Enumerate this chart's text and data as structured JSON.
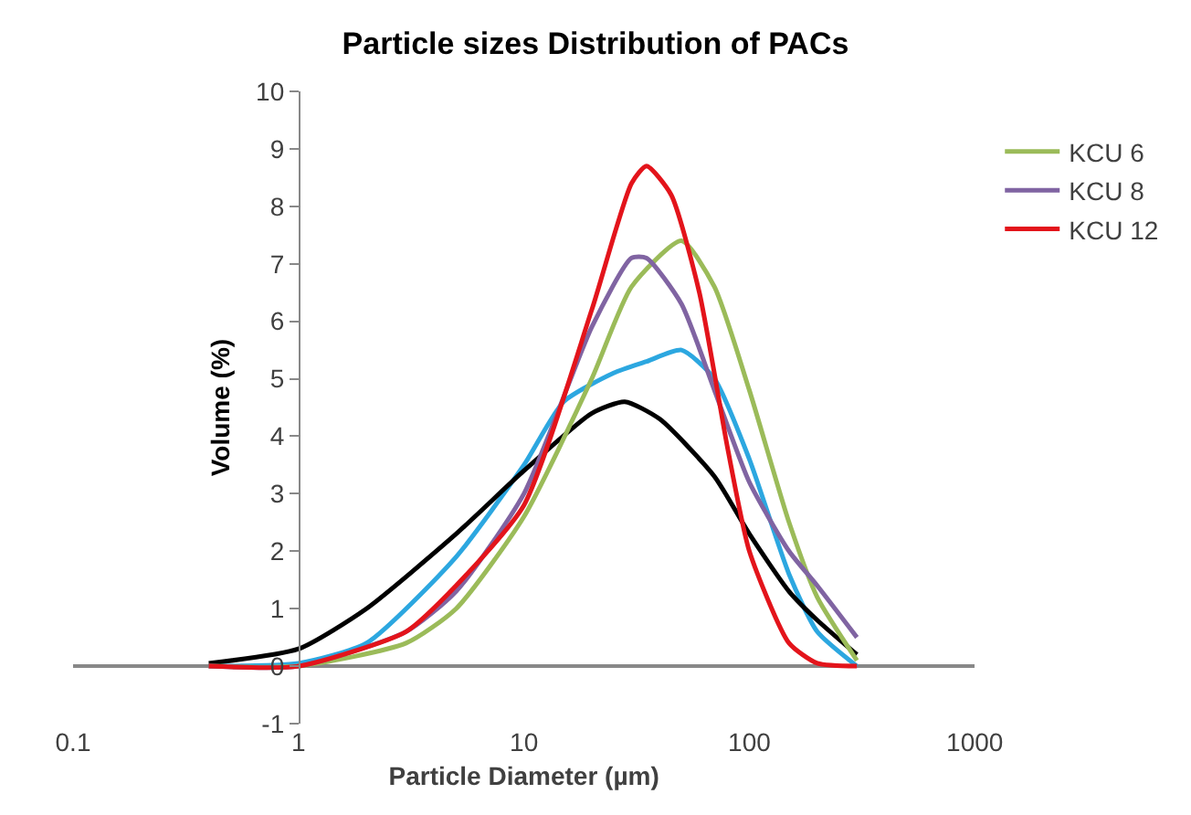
{
  "chart_data": {
    "type": "line",
    "title": "Particle sizes Distribution of PACs",
    "xlabel": "Particle Diameter (µm)",
    "ylabel": "Volume (%)",
    "log": "x",
    "xlim": [
      0.1,
      1000
    ],
    "xticks": [
      0.1,
      1,
      10,
      100,
      1000
    ],
    "ylim": [
      -1,
      10
    ],
    "yticks": [
      -1,
      0,
      1,
      2,
      3,
      4,
      5,
      6,
      7,
      8,
      9,
      10
    ],
    "grid": false,
    "legend": "right",
    "marker": "none",
    "line_style": "solid",
    "series": [
      {
        "color": "#2ca7e0",
        "x": [
          0.4,
          1,
          2,
          5,
          10,
          15,
          25,
          35,
          50,
          70,
          100,
          150,
          200,
          300
        ],
        "values": [
          0,
          0.05,
          0.4,
          1.9,
          3.5,
          4.6,
          5.1,
          5.3,
          5.5,
          5.0,
          3.6,
          1.6,
          0.6,
          0
        ]
      },
      {
        "color": "#000000",
        "x": [
          0.4,
          1,
          2,
          5,
          10,
          20,
          28,
          40,
          70,
          100,
          150,
          200,
          300
        ],
        "values": [
          0.05,
          0.3,
          1.0,
          2.3,
          3.4,
          4.4,
          4.6,
          4.3,
          3.3,
          2.3,
          1.3,
          0.8,
          0.2
        ]
      },
      {
        "name": "KCU 6",
        "color": "#9bbb59",
        "x": [
          0.4,
          1,
          3,
          5,
          10,
          20,
          30,
          50,
          70,
          100,
          150,
          200,
          300
        ],
        "values": [
          0,
          0,
          0.4,
          1.0,
          2.6,
          5.0,
          6.6,
          7.4,
          6.6,
          4.8,
          2.5,
          1.2,
          0.1
        ]
      },
      {
        "name": "KCU 8",
        "color": "#8064a2",
        "x": [
          0.4,
          1,
          3,
          5,
          10,
          20,
          30,
          35,
          50,
          70,
          100,
          150,
          200,
          300
        ],
        "values": [
          0,
          0,
          0.6,
          1.3,
          3.0,
          5.9,
          7.1,
          7.1,
          6.3,
          4.8,
          3.2,
          2.0,
          1.4,
          0.5
        ]
      },
      {
        "name": "KCU 12",
        "color": "#e3141b",
        "x": [
          0.4,
          1,
          3,
          5,
          10,
          20,
          30,
          35,
          45,
          60,
          80,
          100,
          150,
          200,
          300
        ],
        "values": [
          0,
          0,
          0.6,
          1.4,
          2.8,
          6.2,
          8.4,
          8.7,
          8.2,
          6.5,
          3.8,
          2.0,
          0.4,
          0.05,
          0
        ]
      }
    ]
  }
}
